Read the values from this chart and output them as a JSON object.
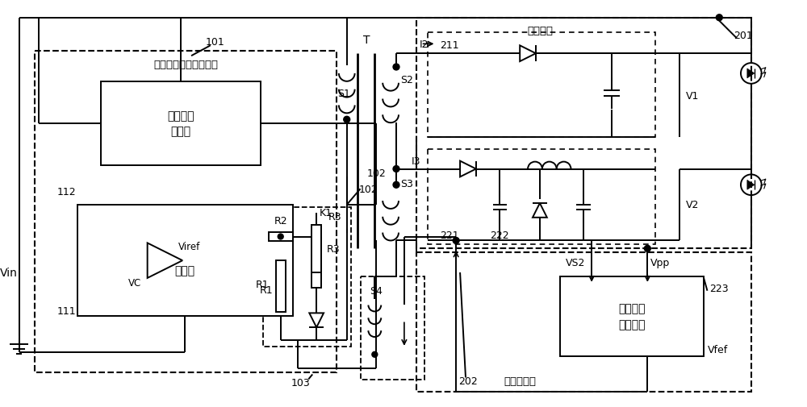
{
  "bg_color": "#ffffff",
  "lw": 1.4,
  "labels": {
    "Vin": "Vin",
    "T": "T",
    "I2": "I2",
    "I3": "I3",
    "S1": "S1",
    "S2": "S2",
    "S3": "S3",
    "S4": "S4",
    "K1": "K1",
    "R1": "R1",
    "R2": "R2",
    "R3": "R3",
    "VC": "VC",
    "Viref": "Viref",
    "V1": "V1",
    "V2": "V2",
    "VS2": "VS2",
    "Vpp": "Vpp",
    "Vfef": "Vfef",
    "n101": "101",
    "n102": "102",
    "n103": "103",
    "n201": "201",
    "n202": "202",
    "n211": "211",
    "n221": "221",
    "n222": "222",
    "n223": "223",
    "n112": "112",
    "n111": "111",
    "unit101": "原边电流驱动控制单元",
    "unit111": "电流环",
    "unit112a": "驱动控制",
    "unit112b": "子单元",
    "unit201": "功率单元",
    "unit202": "去纹波单元",
    "unit_vc_a": "电压环控",
    "unit_vc_b": "制子单元"
  }
}
